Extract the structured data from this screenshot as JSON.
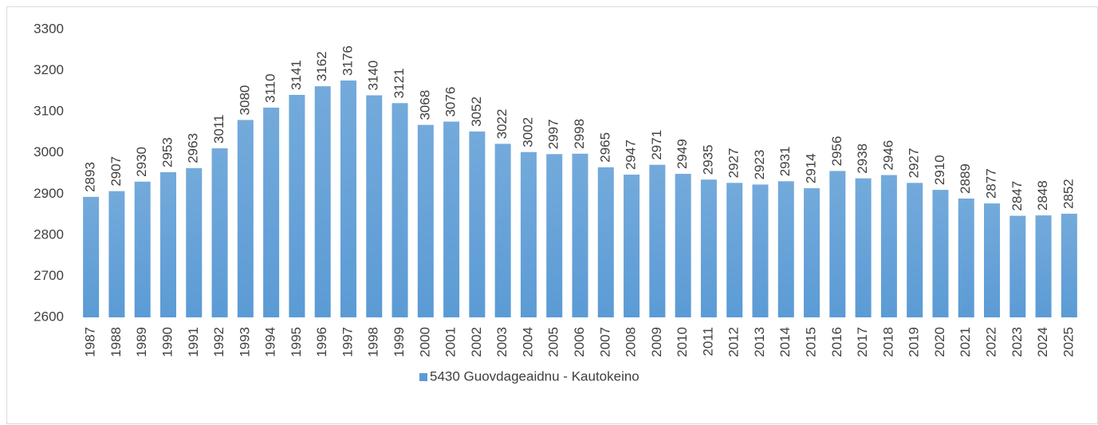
{
  "chart_data": {
    "type": "bar",
    "categories": [
      "1987",
      "1988",
      "1989",
      "1990",
      "1991",
      "1992",
      "1993",
      "1994",
      "1995",
      "1996",
      "1997",
      "1998",
      "1999",
      "2000",
      "2001",
      "2002",
      "2003",
      "2004",
      "2005",
      "2006",
      "2007",
      "2008",
      "2009",
      "2010",
      "2011",
      "2012",
      "2013",
      "2014",
      "2015",
      "2016",
      "2017",
      "2018",
      "2019",
      "2020",
      "2021",
      "2022",
      "2023",
      "2024",
      "2025"
    ],
    "series": [
      {
        "name": "5430 Guovdageaidnu - Kautokeino",
        "color": "#5b9bd5",
        "values": [
          2893,
          2907,
          2930,
          2953,
          2963,
          3011,
          3080,
          3110,
          3141,
          3162,
          3176,
          3140,
          3121,
          3068,
          3076,
          3052,
          3022,
          3002,
          2997,
          2998,
          2965,
          2947,
          2971,
          2949,
          2935,
          2927,
          2923,
          2931,
          2914,
          2956,
          2938,
          2946,
          2927,
          2910,
          2889,
          2877,
          2847,
          2848,
          2852
        ]
      }
    ],
    "ylim": [
      2600,
      3300
    ],
    "yticks": [
      2600,
      2700,
      2800,
      2900,
      3000,
      3100,
      3200,
      3300
    ],
    "grid": false,
    "legend": "bottom"
  }
}
